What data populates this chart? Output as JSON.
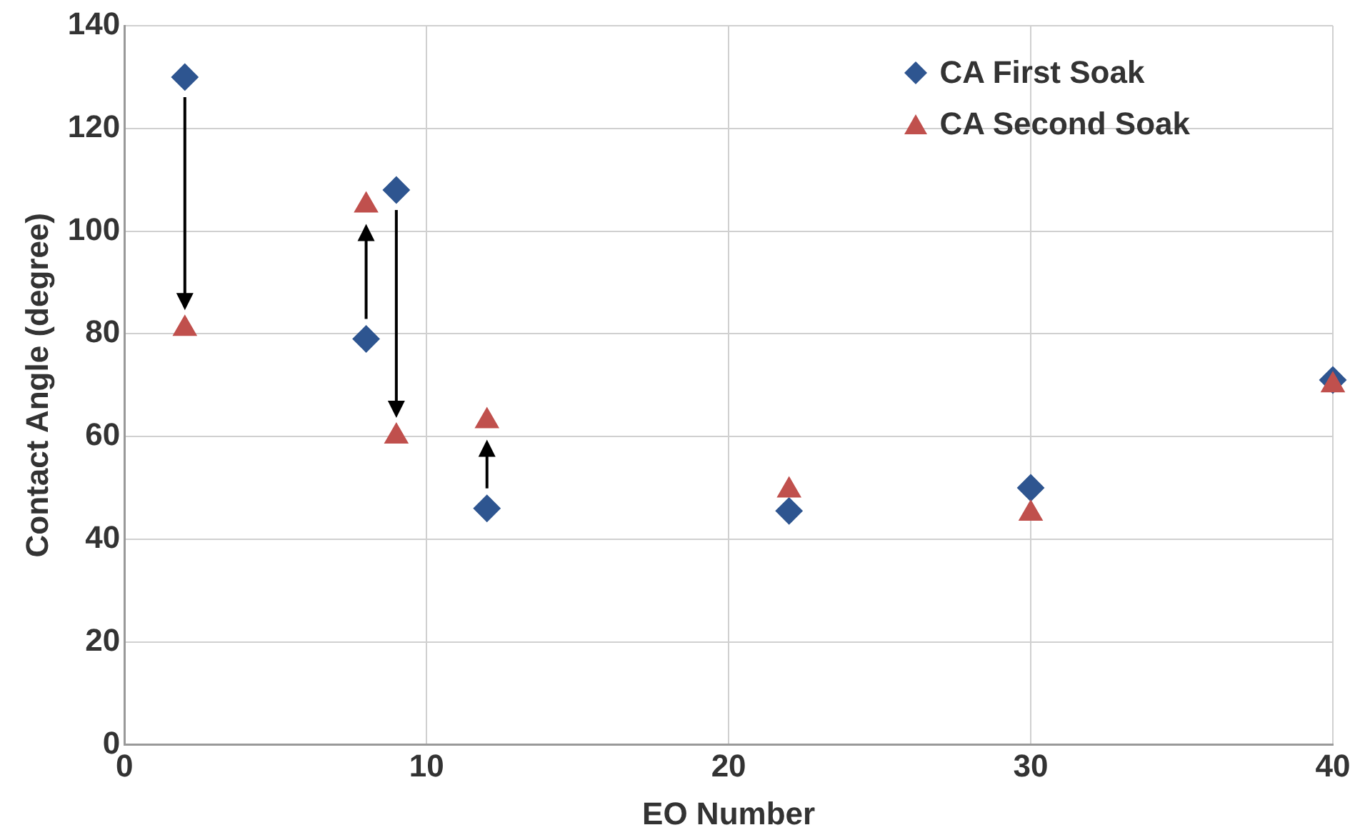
{
  "chart_data": {
    "type": "scatter",
    "xlabel": "EO Number",
    "ylabel": "Contact Angle (degree)",
    "x": [
      2,
      8,
      9,
      12,
      22,
      30,
      40
    ],
    "series": [
      {
        "name": "CA First Soak",
        "color": "#2e5590",
        "marker": "diamond",
        "values": [
          130,
          79,
          108,
          46,
          45.5,
          50,
          71
        ]
      },
      {
        "name": "CA Second Soak",
        "color": "#c0504d",
        "marker": "triangle",
        "values": [
          81,
          105,
          60,
          63,
          49.5,
          45,
          70
        ]
      }
    ],
    "xlim": [
      0,
      40
    ],
    "xticks": [
      0,
      10,
      20,
      30,
      40
    ],
    "ylim": [
      0,
      140
    ],
    "yticks": [
      0,
      20,
      40,
      60,
      80,
      100,
      120,
      140
    ],
    "grid": true,
    "legend": "top right"
  }
}
